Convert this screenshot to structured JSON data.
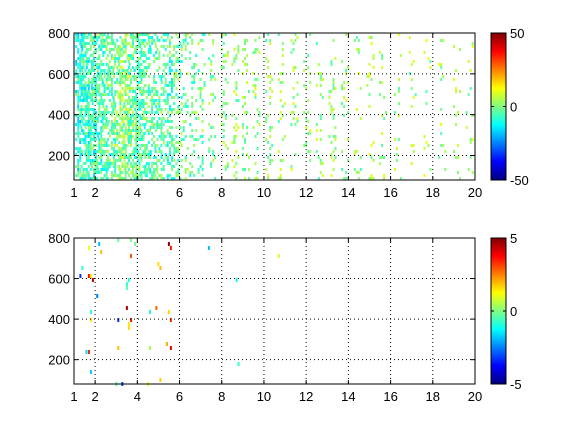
{
  "colors": {
    "background": "#ffffff",
    "axis": "#000000",
    "grid": "#000000",
    "colormap": [
      "#000080",
      "#0000ff",
      "#0080ff",
      "#00ffff",
      "#80ff80",
      "#ffff00",
      "#ff8000",
      "#ff0000",
      "#800000"
    ]
  },
  "chart_data": [
    {
      "type": "heatmap",
      "title": "",
      "xlabel": "",
      "ylabel": "",
      "xlim": [
        1,
        20
      ],
      "ylim": [
        80,
        800
      ],
      "grid": true,
      "x_ticks": [
        1,
        2,
        4,
        6,
        8,
        10,
        12,
        14,
        16,
        18,
        20
      ],
      "y_ticks": [
        200,
        400,
        600,
        800
      ],
      "colorbar": {
        "clim": [
          -50,
          50
        ],
        "ticks": [
          -50,
          0,
          50
        ],
        "position": "right"
      },
      "columns": [
        {
          "x": 1.2,
          "density": 0.82,
          "mean": -9,
          "spread": 10
        },
        {
          "x": 1.45,
          "density": 0.8,
          "mean": -8,
          "spread": 10
        },
        {
          "x": 1.7,
          "density": 0.8,
          "mean": -7,
          "spread": 10
        },
        {
          "x": 1.95,
          "density": 0.78,
          "mean": -6,
          "spread": 10
        },
        {
          "x": 2.2,
          "density": 0.76,
          "mean": -5,
          "spread": 10
        },
        {
          "x": 2.45,
          "density": 0.74,
          "mean": -4,
          "spread": 10
        },
        {
          "x": 2.7,
          "density": 0.72,
          "mean": -3,
          "spread": 9
        },
        {
          "x": 2.95,
          "density": 0.72,
          "mean": -1,
          "spread": 9
        },
        {
          "x": 3.2,
          "density": 0.74,
          "mean": 2,
          "spread": 9
        },
        {
          "x": 3.45,
          "density": 0.72,
          "mean": 1,
          "spread": 9
        },
        {
          "x": 3.7,
          "density": 0.7,
          "mean": -2,
          "spread": 9
        },
        {
          "x": 3.95,
          "density": 0.66,
          "mean": -4,
          "spread": 9
        },
        {
          "x": 4.2,
          "density": 0.6,
          "mean": -4,
          "spread": 9
        },
        {
          "x": 4.45,
          "density": 0.56,
          "mean": -4,
          "spread": 9
        },
        {
          "x": 4.7,
          "density": 0.5,
          "mean": -3,
          "spread": 9
        },
        {
          "x": 4.95,
          "density": 0.48,
          "mean": -3,
          "spread": 9
        },
        {
          "x": 5.25,
          "density": 0.46,
          "mean": -4,
          "spread": 9
        },
        {
          "x": 5.55,
          "density": 0.5,
          "mean": -5,
          "spread": 9
        },
        {
          "x": 5.85,
          "density": 0.42,
          "mean": -3,
          "spread": 9
        },
        {
          "x": 6.2,
          "density": 0.36,
          "mean": -2,
          "spread": 9
        },
        {
          "x": 6.6,
          "density": 0.34,
          "mean": -2,
          "spread": 9
        },
        {
          "x": 7.0,
          "density": 0.36,
          "mean": -1,
          "spread": 9
        },
        {
          "x": 7.5,
          "density": 0.26,
          "mean": 0,
          "spread": 8
        },
        {
          "x": 8.1,
          "density": 0.22,
          "mean": 1,
          "spread": 8
        },
        {
          "x": 8.6,
          "density": 0.26,
          "mean": 2,
          "spread": 8
        },
        {
          "x": 9.1,
          "density": 0.22,
          "mean": 1,
          "spread": 8
        },
        {
          "x": 9.6,
          "density": 0.2,
          "mean": 2,
          "spread": 8
        },
        {
          "x": 10.2,
          "density": 0.18,
          "mean": 1,
          "spread": 8
        },
        {
          "x": 10.8,
          "density": 0.26,
          "mean": 2,
          "spread": 8
        },
        {
          "x": 11.4,
          "density": 0.2,
          "mean": 2,
          "spread": 8
        },
        {
          "x": 12.0,
          "density": 0.18,
          "mean": 2,
          "spread": 8
        },
        {
          "x": 12.6,
          "density": 0.2,
          "mean": 2,
          "spread": 8
        },
        {
          "x": 13.2,
          "density": 0.16,
          "mean": 3,
          "spread": 8
        },
        {
          "x": 13.8,
          "density": 0.16,
          "mean": 2,
          "spread": 8
        },
        {
          "x": 14.4,
          "density": 0.15,
          "mean": 2,
          "spread": 8
        },
        {
          "x": 15.0,
          "density": 0.2,
          "mean": 3,
          "spread": 8
        },
        {
          "x": 15.6,
          "density": 0.14,
          "mean": 3,
          "spread": 8
        },
        {
          "x": 16.3,
          "density": 0.12,
          "mean": 3,
          "spread": 8
        },
        {
          "x": 17.0,
          "density": 0.12,
          "mean": 3,
          "spread": 8
        },
        {
          "x": 17.7,
          "density": 0.11,
          "mean": 3,
          "spread": 8
        },
        {
          "x": 18.4,
          "density": 0.11,
          "mean": 3,
          "spread": 8
        },
        {
          "x": 19.1,
          "density": 0.11,
          "mean": 3,
          "spread": 8
        },
        {
          "x": 19.7,
          "density": 0.12,
          "mean": 3,
          "spread": 8
        }
      ]
    },
    {
      "type": "heatmap",
      "title": "",
      "xlabel": "",
      "ylabel": "",
      "xlim": [
        1,
        20
      ],
      "ylim": [
        80,
        800
      ],
      "grid": true,
      "x_ticks": [
        1,
        2,
        4,
        6,
        8,
        10,
        12,
        14,
        16,
        18,
        20
      ],
      "y_ticks": [
        200,
        400,
        600,
        800
      ],
      "colorbar": {
        "clim": [
          -5,
          5
        ],
        "ticks": [
          -5,
          0,
          5
        ],
        "position": "right"
      },
      "columns": [
        {
          "x": 1.4,
          "density": 0.05,
          "mean": 0,
          "spread": 3.5
        },
        {
          "x": 1.8,
          "density": 0.06,
          "mean": 1,
          "spread": 3.5
        },
        {
          "x": 2.1,
          "density": 0.02,
          "mean": 0,
          "spread": 3
        },
        {
          "x": 3.1,
          "density": 0.05,
          "mean": 0,
          "spread": 3.5
        },
        {
          "x": 3.6,
          "density": 0.07,
          "mean": 2,
          "spread": 3
        },
        {
          "x": 3.8,
          "density": 0.05,
          "mean": 1,
          "spread": 3
        },
        {
          "x": 4.6,
          "density": 0.02,
          "mean": 2,
          "spread": 3
        },
        {
          "x": 5.0,
          "density": 0.04,
          "mean": 3,
          "spread": 2.5
        },
        {
          "x": 5.4,
          "density": 0.05,
          "mean": 2,
          "spread": 3
        },
        {
          "x": 5.8,
          "density": 0.01,
          "mean": 0,
          "spread": 2
        },
        {
          "x": 7.2,
          "density": 0.02,
          "mean": -1,
          "spread": 2
        },
        {
          "x": 8.8,
          "density": 0.02,
          "mean": 0,
          "spread": 2
        },
        {
          "x": 9.2,
          "density": 0.03,
          "mean": 1,
          "spread": 2
        },
        {
          "x": 10.8,
          "density": 0.02,
          "mean": 1,
          "spread": 2
        },
        {
          "x": 11.7,
          "density": 0.01,
          "mean": 1,
          "spread": 2
        }
      ]
    }
  ]
}
